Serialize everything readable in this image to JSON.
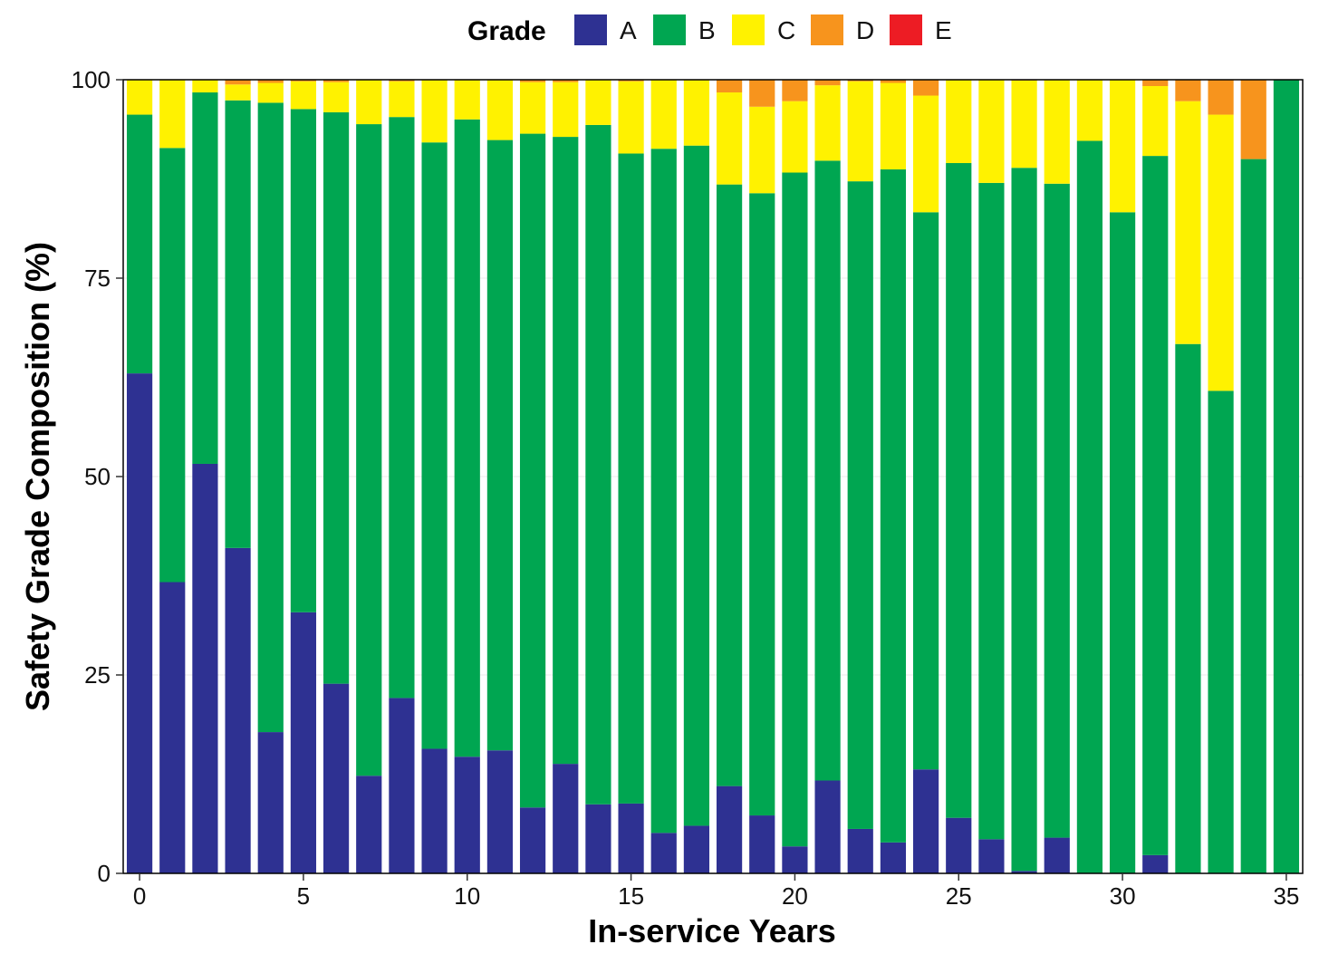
{
  "chart_data": {
    "type": "bar",
    "stacked": true,
    "xlabel": "In-service Years",
    "ylabel": "Safety Grade Composition (%)",
    "ylim": [
      0,
      100
    ],
    "yticks": [
      0,
      25,
      50,
      75,
      100
    ],
    "xlim": [
      -0.5,
      35.5
    ],
    "xticks": [
      0,
      5,
      10,
      15,
      20,
      25,
      30,
      35
    ],
    "grid": false,
    "legend": {
      "title": "Grade",
      "position": "top"
    },
    "x": [
      0,
      1,
      2,
      3,
      4,
      5,
      6,
      7,
      8,
      9,
      10,
      11,
      12,
      13,
      14,
      15,
      16,
      17,
      18,
      19,
      20,
      21,
      22,
      23,
      24,
      25,
      26,
      27,
      28,
      29,
      30,
      31,
      32,
      33,
      34,
      35
    ],
    "series": [
      {
        "name": "A",
        "color": "#2E3192",
        "values": [
          63,
          36.7,
          51.6,
          41,
          17.8,
          32.9,
          23.9,
          12.3,
          22.1,
          15.7,
          14.7,
          15.5,
          8.3,
          13.8,
          8.7,
          8.8,
          5.1,
          6,
          11,
          7.3,
          3.4,
          11.7,
          5.6,
          3.9,
          13.1,
          7,
          4.3,
          0.3,
          4.5,
          0,
          0,
          2.3,
          0,
          0,
          0,
          0
        ]
      },
      {
        "name": "B",
        "color": "#00A651",
        "values": [
          32.6,
          54.7,
          46.8,
          56.4,
          79.3,
          63.4,
          72,
          82.1,
          73.2,
          76.4,
          80.3,
          76.9,
          84.9,
          79,
          85.6,
          81.9,
          86.2,
          85.7,
          75.8,
          78.4,
          84.9,
          78.1,
          81.6,
          84.8,
          70.2,
          82.5,
          82.7,
          88.6,
          82.4,
          92.3,
          83.3,
          88.1,
          66.7,
          60.8,
          90,
          100
        ]
      },
      {
        "name": "C",
        "color": "#FFF200",
        "values": [
          4.4,
          8.6,
          1.6,
          2,
          2.5,
          3.5,
          3.8,
          5.6,
          4.5,
          7.9,
          5,
          7.6,
          6.5,
          6.9,
          5.7,
          9.1,
          8.7,
          8.3,
          11.6,
          10.9,
          9,
          9.5,
          12.6,
          10.9,
          14.7,
          10.5,
          13,
          11,
          13.1,
          7.7,
          16.7,
          8.8,
          30.6,
          34.8,
          0,
          0
        ]
      },
      {
        "name": "D",
        "color": "#F7941D",
        "values": [
          0,
          0,
          0,
          0.6,
          0.4,
          0.2,
          0.3,
          0,
          0.2,
          0,
          0,
          0,
          0.3,
          0.3,
          0,
          0.2,
          0,
          0,
          1.6,
          3.4,
          2.7,
          0.7,
          0.2,
          0.4,
          2,
          0,
          0,
          0.1,
          0,
          0,
          0,
          0.8,
          2.7,
          4.4,
          10,
          0
        ]
      },
      {
        "name": "E",
        "color": "#ED1C24",
        "values": [
          0,
          0,
          0,
          0,
          0,
          0,
          0,
          0,
          0,
          0,
          0,
          0,
          0,
          0,
          0,
          0,
          0,
          0,
          0,
          0,
          0,
          0,
          0,
          0,
          0,
          0,
          0,
          0,
          0,
          0,
          0,
          0,
          0,
          0,
          0,
          0
        ]
      }
    ]
  }
}
